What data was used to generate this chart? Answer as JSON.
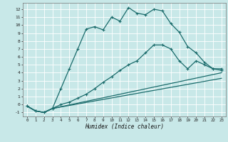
{
  "xlabel": "Humidex (Indice chaleur)",
  "bg_color": "#c8e8e8",
  "grid_color": "#b0d4d4",
  "line_color": "#1a6b6b",
  "xlim": [
    -0.5,
    23.5
  ],
  "ylim": [
    -1.5,
    12.8
  ],
  "xticks": [
    0,
    1,
    2,
    3,
    4,
    5,
    6,
    7,
    8,
    9,
    10,
    11,
    12,
    13,
    14,
    15,
    16,
    17,
    18,
    19,
    20,
    21,
    22,
    23
  ],
  "yticks": [
    -1,
    0,
    1,
    2,
    3,
    4,
    5,
    6,
    7,
    8,
    9,
    10,
    11,
    12
  ],
  "line1_x": [
    0,
    1,
    2,
    3,
    4,
    5,
    6,
    7,
    8,
    9,
    10,
    11,
    12,
    13,
    14,
    15,
    16,
    17,
    18,
    19,
    20,
    21,
    22,
    23
  ],
  "line1_y": [
    -0.2,
    -0.8,
    -1.0,
    -0.5,
    2.0,
    4.5,
    7.0,
    9.5,
    9.8,
    9.4,
    11.0,
    10.5,
    12.2,
    11.5,
    11.3,
    12.0,
    11.8,
    10.2,
    9.1,
    7.3,
    6.5,
    5.3,
    4.5,
    4.5
  ],
  "line2_x": [
    0,
    1,
    2,
    3,
    4,
    5,
    6,
    7,
    8,
    9,
    10,
    11,
    12,
    13,
    14,
    15,
    16,
    17,
    18,
    19,
    20,
    21,
    22,
    23
  ],
  "line2_y": [
    -0.2,
    -0.8,
    -1.0,
    -0.5,
    0.0,
    0.3,
    0.8,
    1.3,
    2.0,
    2.8,
    3.5,
    4.3,
    5.0,
    5.5,
    6.5,
    7.5,
    7.5,
    7.0,
    5.5,
    4.5,
    5.5,
    5.0,
    4.5,
    4.3
  ],
  "line3_x": [
    0,
    1,
    2,
    3,
    23
  ],
  "line3_y": [
    -0.2,
    -0.8,
    -1.0,
    -0.5,
    4.0
  ],
  "line4_x": [
    0,
    1,
    2,
    3,
    23
  ],
  "line4_y": [
    -0.2,
    -0.8,
    -1.0,
    -0.5,
    3.3
  ]
}
